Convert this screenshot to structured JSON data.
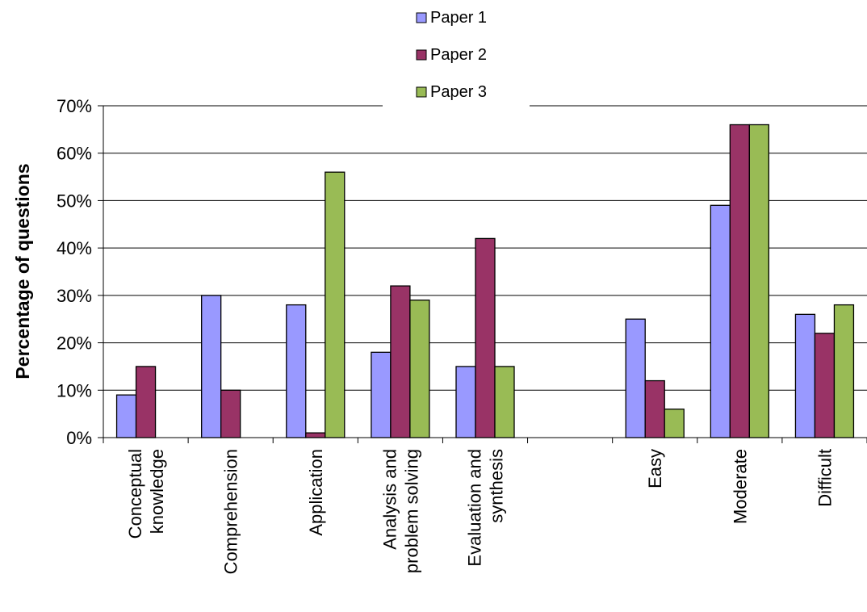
{
  "chart_data": {
    "type": "bar",
    "title": "",
    "xlabel": "",
    "ylabel": "Percentage of questions",
    "ylim": [
      0,
      70
    ],
    "yticks": [
      "0%",
      "10%",
      "20%",
      "30%",
      "40%",
      "50%",
      "60%",
      "70%"
    ],
    "grid": "horizontal",
    "legend_position": "top",
    "categories": [
      [
        "Conceptual",
        "knowledge"
      ],
      [
        "Comprehension"
      ],
      [
        "Application"
      ],
      [
        "Analysis and",
        "problem solving"
      ],
      [
        "Evaluation and",
        "synthesis"
      ],
      [
        ""
      ],
      [
        "Easy"
      ],
      [
        "Moderate"
      ],
      [
        "Difficult"
      ]
    ],
    "series": [
      {
        "name": "Paper 1",
        "color": "#9999ff",
        "values": [
          9,
          30,
          28,
          18,
          15,
          null,
          25,
          49,
          26
        ]
      },
      {
        "name": "Paper 2",
        "color": "#993366",
        "values": [
          15,
          10,
          1,
          32,
          42,
          null,
          12,
          66,
          22
        ]
      },
      {
        "name": "Paper 3",
        "color": "#99bb55",
        "values": [
          0,
          0,
          56,
          29,
          15,
          null,
          6,
          66,
          28
        ]
      }
    ]
  }
}
